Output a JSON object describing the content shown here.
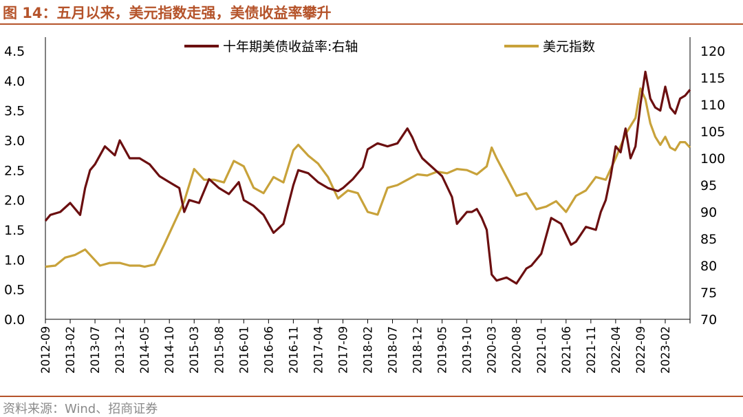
{
  "title": "图 14：五月以来，美元指数走强，美债收益率攀升",
  "source": "资料来源：Wind、招商证券",
  "colors": {
    "accent": "#b5532a",
    "treasury": "#6b0f10",
    "dxy": "#c8a23a"
  },
  "chart_data": {
    "type": "line",
    "legend_position": "top",
    "grid": false,
    "x_tick_labels": [
      "2012-09",
      "2013-02",
      "2013-07",
      "2013-12",
      "2014-05",
      "2014-10",
      "2015-03",
      "2015-08",
      "2016-01",
      "2016-06",
      "2016-11",
      "2017-04",
      "2017-09",
      "2018-02",
      "2018-07",
      "2018-12",
      "2019-05",
      "2019-10",
      "2020-03",
      "2020-08",
      "2021-01",
      "2021-06",
      "2021-11",
      "2022-04",
      "2022-09",
      "2023-02"
    ],
    "xlim": [
      "2012-09",
      "2023-07"
    ],
    "y_left": {
      "ylim": [
        0,
        4.5
      ],
      "ticks": [
        "0.0",
        "0.5",
        "1.0",
        "1.5",
        "2.0",
        "2.5",
        "3.0",
        "3.5",
        "4.0",
        "4.5"
      ]
    },
    "y_right": {
      "ylim": [
        70,
        120
      ],
      "ticks": [
        "70",
        "75",
        "80",
        "85",
        "90",
        "95",
        "100",
        "105",
        "110",
        "115",
        "120"
      ]
    },
    "series": [
      {
        "name": "十年期美债收益率:右轴",
        "axis": "left",
        "color": "#6b0f10",
        "x": [
          "2012-09",
          "2012-10",
          "2012-12",
          "2013-02",
          "2013-04",
          "2013-05",
          "2013-06",
          "2013-07",
          "2013-09",
          "2013-11",
          "2013-12",
          "2014-02",
          "2014-04",
          "2014-06",
          "2014-08",
          "2014-10",
          "2014-12",
          "2015-01",
          "2015-02",
          "2015-04",
          "2015-06",
          "2015-08",
          "2015-10",
          "2015-12",
          "2016-01",
          "2016-03",
          "2016-05",
          "2016-07",
          "2016-09",
          "2016-11",
          "2016-12",
          "2017-02",
          "2017-04",
          "2017-06",
          "2017-08",
          "2017-09",
          "2017-11",
          "2018-01",
          "2018-02",
          "2018-04",
          "2018-06",
          "2018-08",
          "2018-10",
          "2018-11",
          "2018-12",
          "2019-01",
          "2019-03",
          "2019-05",
          "2019-07",
          "2019-08",
          "2019-09",
          "2019-10",
          "2019-11",
          "2019-12",
          "2020-01",
          "2020-02",
          "2020-03",
          "2020-04",
          "2020-06",
          "2020-08",
          "2020-10",
          "2020-11",
          "2021-01",
          "2021-02",
          "2021-03",
          "2021-05",
          "2021-07",
          "2021-08",
          "2021-10",
          "2021-12",
          "2022-01",
          "2022-02",
          "2022-03",
          "2022-04",
          "2022-05",
          "2022-06",
          "2022-07",
          "2022-08",
          "2022-09",
          "2022-10",
          "2022-11",
          "2022-12",
          "2023-01",
          "2023-02",
          "2023-03",
          "2023-04",
          "2023-05",
          "2023-06",
          "2023-07"
        ],
        "values": [
          1.65,
          1.75,
          1.8,
          1.95,
          1.75,
          2.2,
          2.5,
          2.6,
          2.9,
          2.75,
          3.0,
          2.7,
          2.7,
          2.6,
          2.4,
          2.3,
          2.2,
          1.8,
          2.0,
          1.95,
          2.35,
          2.2,
          2.1,
          2.3,
          2.0,
          1.9,
          1.75,
          1.45,
          1.6,
          2.25,
          2.5,
          2.45,
          2.3,
          2.2,
          2.15,
          2.2,
          2.35,
          2.55,
          2.85,
          2.95,
          2.9,
          2.95,
          3.2,
          3.05,
          2.85,
          2.7,
          2.55,
          2.4,
          2.05,
          1.6,
          1.7,
          1.8,
          1.8,
          1.85,
          1.7,
          1.5,
          0.75,
          0.65,
          0.7,
          0.6,
          0.85,
          0.9,
          1.1,
          1.4,
          1.7,
          1.6,
          1.25,
          1.3,
          1.55,
          1.5,
          1.8,
          2.0,
          2.4,
          2.9,
          2.8,
          3.2,
          2.7,
          2.9,
          3.6,
          4.15,
          3.7,
          3.55,
          3.5,
          3.9,
          3.55,
          3.45,
          3.7,
          3.75,
          3.85
        ]
      },
      {
        "name": "美元指数",
        "axis": "right",
        "color": "#c8a23a",
        "x": [
          "2012-09",
          "2012-11",
          "2013-01",
          "2013-03",
          "2013-05",
          "2013-07",
          "2013-08",
          "2013-10",
          "2013-12",
          "2014-02",
          "2014-04",
          "2014-05",
          "2014-07",
          "2014-09",
          "2014-11",
          "2015-01",
          "2015-03",
          "2015-05",
          "2015-07",
          "2015-09",
          "2015-11",
          "2016-01",
          "2016-03",
          "2016-05",
          "2016-07",
          "2016-09",
          "2016-11",
          "2016-12",
          "2017-02",
          "2017-04",
          "2017-06",
          "2017-08",
          "2017-10",
          "2017-12",
          "2018-02",
          "2018-04",
          "2018-06",
          "2018-08",
          "2018-10",
          "2018-12",
          "2019-02",
          "2019-04",
          "2019-06",
          "2019-08",
          "2019-10",
          "2019-12",
          "2020-02",
          "2020-03",
          "2020-04",
          "2020-06",
          "2020-08",
          "2020-10",
          "2020-12",
          "2021-02",
          "2021-04",
          "2021-06",
          "2021-08",
          "2021-10",
          "2021-12",
          "2022-02",
          "2022-04",
          "2022-06",
          "2022-08",
          "2022-09",
          "2022-10",
          "2022-11",
          "2022-12",
          "2023-01",
          "2023-02",
          "2023-03",
          "2023-04",
          "2023-05",
          "2023-06",
          "2023-07"
        ],
        "values": [
          79.8,
          80,
          81.5,
          82,
          83,
          81,
          80,
          80.5,
          80.5,
          80,
          80,
          79.8,
          80.2,
          84,
          88,
          92,
          98,
          96,
          96,
          95.5,
          99.5,
          98.5,
          94.5,
          93.5,
          96.5,
          95.5,
          101.5,
          102.5,
          100.5,
          99,
          96.5,
          92.5,
          94,
          93.5,
          90,
          89.5,
          94.5,
          95,
          96,
          97,
          96.8,
          97.5,
          97.2,
          98,
          97.8,
          97,
          98.5,
          102,
          100,
          96.5,
          93,
          93.5,
          90.5,
          91,
          92,
          90,
          93,
          94,
          96.5,
          96,
          100,
          104.5,
          107.5,
          113,
          111,
          106.5,
          104,
          102.5,
          104,
          102,
          101.5,
          103,
          103,
          102
        ]
      }
    ]
  }
}
